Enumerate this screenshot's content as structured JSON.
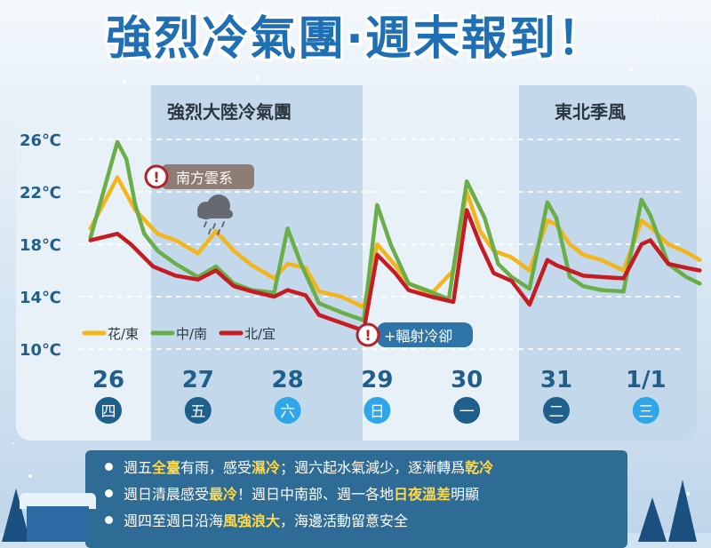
{
  "headline": "強烈冷氣團·週末報到！",
  "bands": [
    {
      "label": "強烈大陸冷氣團"
    },
    {
      "label": "東北季風"
    }
  ],
  "annotations": {
    "south_cloud": "南方雲系",
    "radiative": "+輻射冷卻",
    "alert_glyph": "!"
  },
  "colors": {
    "hua_dong": "#f2b51c",
    "zhong_nan": "#6aae4a",
    "bei_yi": "#c51c24",
    "day_dark": "#1f5f8c",
    "day_weekend": "#2fa6e8",
    "alert_red": "#b3242a",
    "tag_gray": "#8e7d74",
    "tag_blue": "#2f74a8"
  },
  "days": [
    {
      "date": "26",
      "weekday": "四",
      "weekend": false
    },
    {
      "date": "27",
      "weekday": "五",
      "weekend": false
    },
    {
      "date": "28",
      "weekday": "六",
      "weekend": true
    },
    {
      "date": "29",
      "weekday": "日",
      "weekend": true
    },
    {
      "date": "30",
      "weekday": "一",
      "weekend": false
    },
    {
      "date": "31",
      "weekday": "二",
      "weekend": false
    },
    {
      "date": "1/1",
      "weekday": "三",
      "weekend": true
    }
  ],
  "bullets": [
    [
      {
        "t": "週五"
      },
      {
        "t": "全臺",
        "h": true
      },
      {
        "t": "有雨，感受"
      },
      {
        "t": "濕冷",
        "h": true
      },
      {
        "t": "；週六起水氣減少，逐漸轉爲"
      },
      {
        "t": "乾冷",
        "h": true
      }
    ],
    [
      {
        "t": "週日清晨感受"
      },
      {
        "t": "最冷",
        "h": true
      },
      {
        "t": "！週日中南部、週一各地"
      },
      {
        "t": "日夜溫差",
        "h": true
      },
      {
        "t": "明顯"
      }
    ],
    [
      {
        "t": "週四至週日沿海"
      },
      {
        "t": "風強浪大",
        "h": true
      },
      {
        "t": "，海邊活動留意安全"
      }
    ]
  ],
  "chart_data": {
    "type": "line",
    "ylim": [
      10,
      26
    ],
    "yticks": [
      {
        "v": 26,
        "label": "26℃"
      },
      {
        "v": 22,
        "label": "22℃"
      },
      {
        "v": 18,
        "label": "18℃"
      },
      {
        "v": 14,
        "label": "14℃"
      },
      {
        "v": 10,
        "label": "10℃"
      }
    ],
    "x_days": [
      "26",
      "27",
      "28",
      "29",
      "30",
      "31",
      "1/1"
    ],
    "x_note": "x is in days; 0 = 26th",
    "legend_placement": "bottom-left",
    "series": [
      {
        "name": "花/東",
        "color": "#f2b51c",
        "x": [
          -0.2,
          0.1,
          0.3,
          0.55,
          0.75,
          1.0,
          1.2,
          1.4,
          1.6,
          1.85,
          2.0,
          2.2,
          2.35,
          2.6,
          2.85,
          3.0,
          3.2,
          3.35,
          3.6,
          3.85,
          4.0,
          4.15,
          4.3,
          4.5,
          4.7,
          4.9,
          5.0,
          5.15,
          5.3,
          5.5,
          5.75,
          5.95,
          6.05,
          6.25,
          6.45,
          6.6
        ],
        "y": [
          19.2,
          23.1,
          20.6,
          18.8,
          18.3,
          17.3,
          19.0,
          17.5,
          16.4,
          15.4,
          16.5,
          16.2,
          14.4,
          14.0,
          13.2,
          18.0,
          16.4,
          15.0,
          14.2,
          16.0,
          22.0,
          19.0,
          17.5,
          17.0,
          16.0,
          19.8,
          19.5,
          18.0,
          17.2,
          16.8,
          16.0,
          19.8,
          19.3,
          18.0,
          17.4,
          16.8
        ]
      },
      {
        "name": "中/南",
        "color": "#6aae4a",
        "x": [
          -0.2,
          0.1,
          0.2,
          0.3,
          0.4,
          0.55,
          0.75,
          1.0,
          1.2,
          1.4,
          1.6,
          1.85,
          2.0,
          2.15,
          2.35,
          2.6,
          2.85,
          3.0,
          3.15,
          3.35,
          3.55,
          3.8,
          4.0,
          4.2,
          4.35,
          4.5,
          4.7,
          4.9,
          5.0,
          5.15,
          5.3,
          5.5,
          5.75,
          5.95,
          6.05,
          6.25,
          6.45,
          6.6
        ],
        "y": [
          18.5,
          25.8,
          24.5,
          21.0,
          18.8,
          17.5,
          16.5,
          15.5,
          16.3,
          15.0,
          14.5,
          14.3,
          19.2,
          16.5,
          13.5,
          12.8,
          12.2,
          21.0,
          18.0,
          15.0,
          14.5,
          13.8,
          22.8,
          20.0,
          16.5,
          15.5,
          14.6,
          21.2,
          20.0,
          15.5,
          14.8,
          14.5,
          14.4,
          21.4,
          20.2,
          16.5,
          15.5,
          15.0
        ]
      },
      {
        "name": "北/宜",
        "color": "#c51c24",
        "x": [
          -0.2,
          0.1,
          0.25,
          0.5,
          0.75,
          1.0,
          1.2,
          1.4,
          1.6,
          1.85,
          2.0,
          2.2,
          2.35,
          2.6,
          2.85,
          3.0,
          3.2,
          3.35,
          3.6,
          3.85,
          4.0,
          4.15,
          4.3,
          4.5,
          4.7,
          4.9,
          5.0,
          5.15,
          5.3,
          5.5,
          5.75,
          5.95,
          6.05,
          6.25,
          6.45,
          6.6
        ],
        "y": [
          18.3,
          18.8,
          18.0,
          16.3,
          15.6,
          15.3,
          16.0,
          14.8,
          14.4,
          14.0,
          14.5,
          14.1,
          12.6,
          12.0,
          11.4,
          17.2,
          15.8,
          14.5,
          14.0,
          13.6,
          20.6,
          18.0,
          15.8,
          15.2,
          13.4,
          16.8,
          16.4,
          16.0,
          15.6,
          15.5,
          15.4,
          18.0,
          18.3,
          16.5,
          16.2,
          16.0
        ]
      }
    ]
  }
}
